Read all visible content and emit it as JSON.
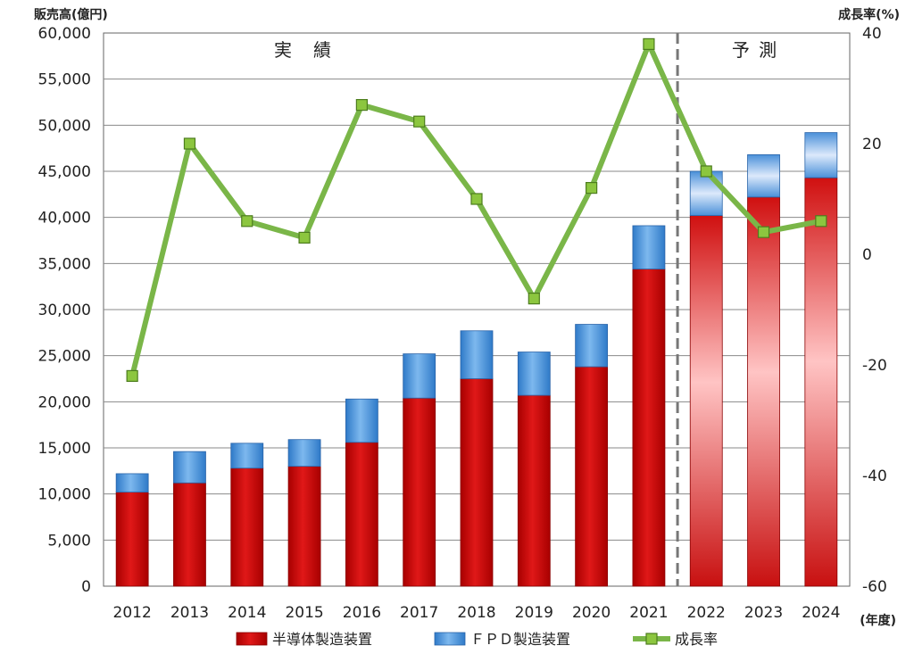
{
  "chart_data": {
    "type": "bar",
    "stacked": true,
    "categories": [
      "2012",
      "2013",
      "2014",
      "2015",
      "2016",
      "2017",
      "2018",
      "2019",
      "2020",
      "2021",
      "2022",
      "2023",
      "2024"
    ],
    "series": [
      {
        "name": "半導体製造装置",
        "type": "bar",
        "axis": "left",
        "values": [
          10200,
          11200,
          12800,
          13000,
          15600,
          20400,
          22500,
          20700,
          23800,
          34400,
          40200,
          42200,
          44300
        ],
        "color": "#cc1111"
      },
      {
        "name": "ＦＰＤ製造装置",
        "type": "bar",
        "axis": "left",
        "values": [
          2000,
          3400,
          2700,
          2900,
          4700,
          4800,
          5200,
          4700,
          4600,
          4700,
          4800,
          4600,
          4900
        ],
        "color": "#4a90d9"
      },
      {
        "name": "成長率",
        "type": "line",
        "axis": "right",
        "values": [
          -22,
          20,
          6,
          3,
          27,
          24,
          10,
          -8,
          12,
          38,
          15,
          4,
          6
        ],
        "color": "#7ab648"
      }
    ],
    "forecast_from": "2022",
    "left_axis": {
      "label": "販売高(億円)",
      "min": 0,
      "max": 60000,
      "step": 5000,
      "ticks": [
        "0",
        "5,000",
        "10,000",
        "15,000",
        "20,000",
        "25,000",
        "30,000",
        "35,000",
        "40,000",
        "45,000",
        "50,000",
        "55,000",
        "60,000"
      ]
    },
    "right_axis": {
      "label": "成長率(%)",
      "min": -60,
      "max": 40,
      "step": 20,
      "ticks": [
        "40",
        "20",
        "0",
        "-20",
        "-40",
        "-60"
      ]
    },
    "xlabel": "(年度)",
    "annotations": {
      "actual": "実　績",
      "forecast": "予 測"
    },
    "grid": true,
    "legend_position": "bottom"
  }
}
